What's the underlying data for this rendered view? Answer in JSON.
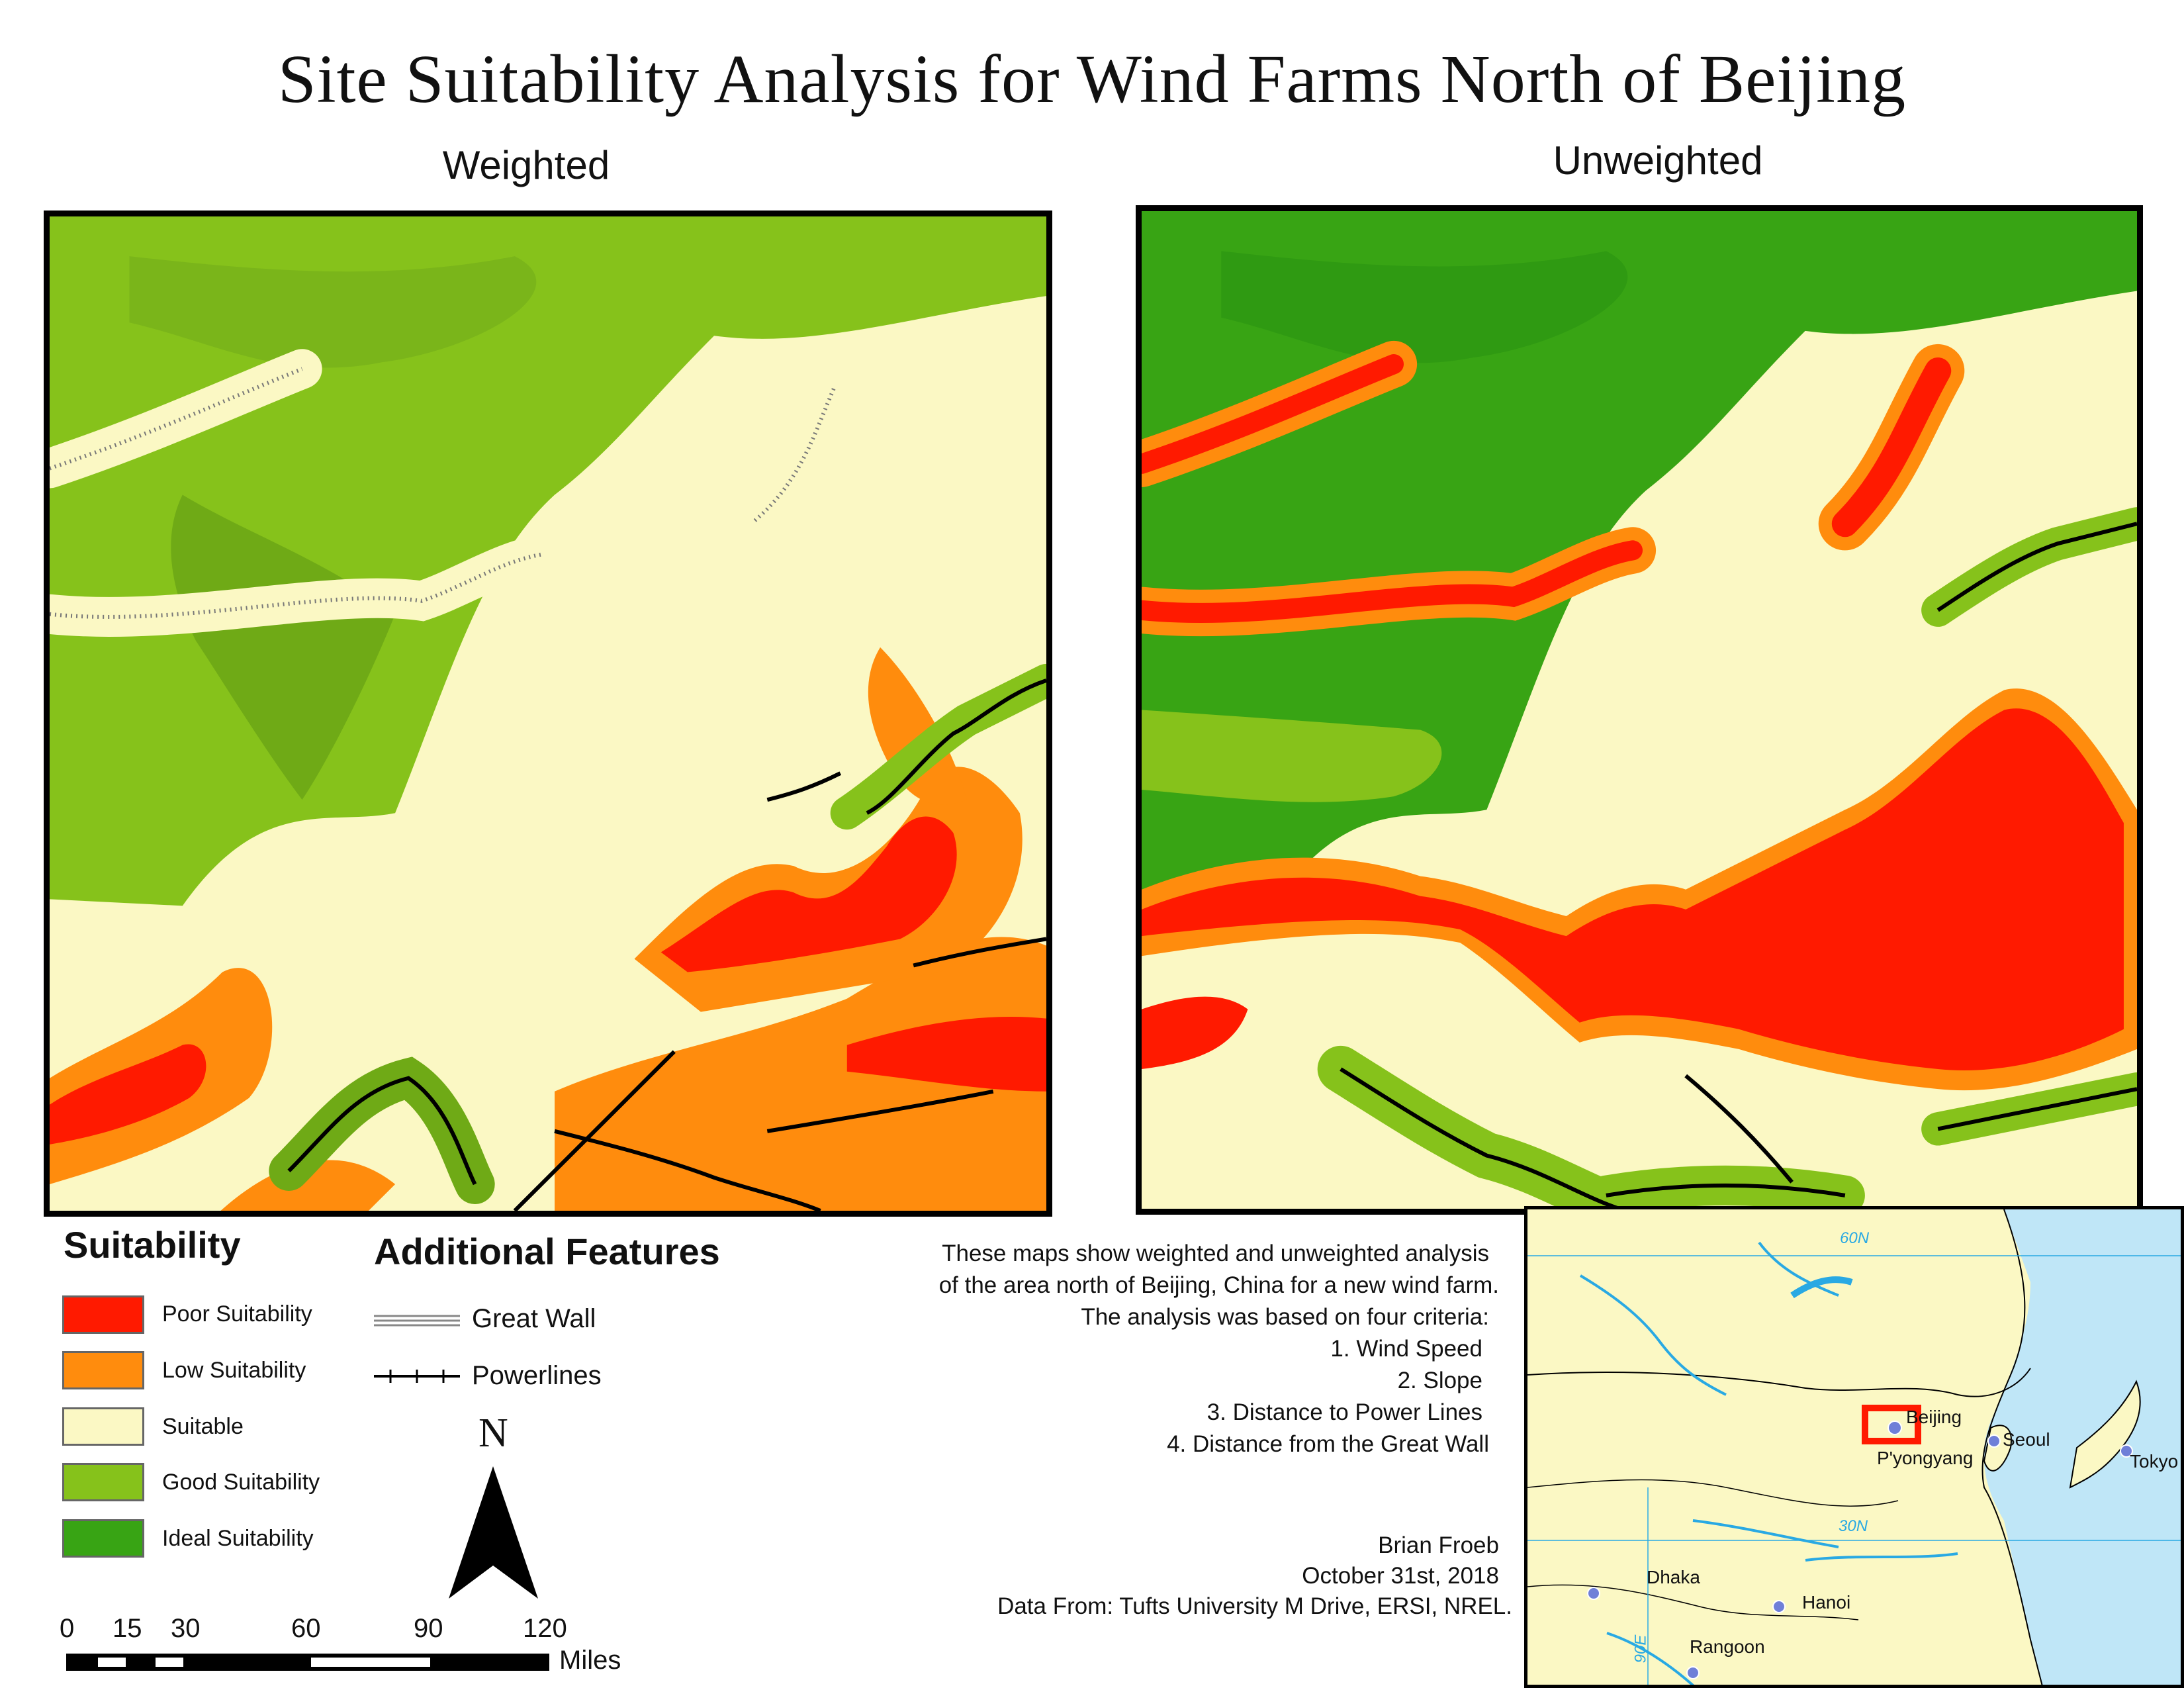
{
  "title": "Site Suitability Analysis for Wind Farms North of Beijing",
  "maps": {
    "weighted_label": "Weighted",
    "unweighted_label": "Unweighted"
  },
  "colors": {
    "poor": "#ff1a00",
    "low": "#ff8c0d",
    "suitable": "#fbf8c4",
    "good": "#86c21b",
    "ideal": "#38a414",
    "water": "#29a9e3"
  },
  "legend": {
    "heading": "Suitability",
    "items": [
      {
        "label": "Poor Suitability",
        "color": "#ff1a00"
      },
      {
        "label": "Low Suitability",
        "color": "#ff8c0d"
      },
      {
        "label": "Suitable",
        "color": "#fbf8c4"
      },
      {
        "label": "Good Suitability",
        "color": "#86c21b"
      },
      {
        "label": "Ideal Suitability",
        "color": "#38a414"
      }
    ]
  },
  "features": {
    "heading": "Additional Features",
    "great_wall": "Great Wall",
    "powerlines": "Powerlines"
  },
  "north_arrow": {
    "label": "N"
  },
  "scale_bar": {
    "ticks": [
      "0",
      "15",
      "30",
      "60",
      "90",
      "120"
    ],
    "unit": "Miles"
  },
  "description": {
    "lines": [
      "These maps show weighted and unweighted analysis",
      "of the area north of Beijing, China for a new wind farm.",
      "The analysis was based on four criteria:",
      "1. Wind Speed",
      "2. Slope",
      "3. Distance to Power Lines",
      "4. Distance from the Great Wall"
    ]
  },
  "credits": {
    "author": "Brian Froeb",
    "date": "October 31st, 2018",
    "source": "Data From: Tufts University M Drive, ERSI, NREL."
  },
  "inset": {
    "labels": {
      "beijing": "Beijing",
      "seoul": "Seoul",
      "pyongyang": "P'yongyang",
      "tokyo": "Tokyo",
      "dhaka": "Dhaka",
      "hanoi": "Hanoi",
      "rangoon": "Rangoon",
      "lat60": "60N",
      "lat30": "30N",
      "lon90": "90E"
    }
  }
}
